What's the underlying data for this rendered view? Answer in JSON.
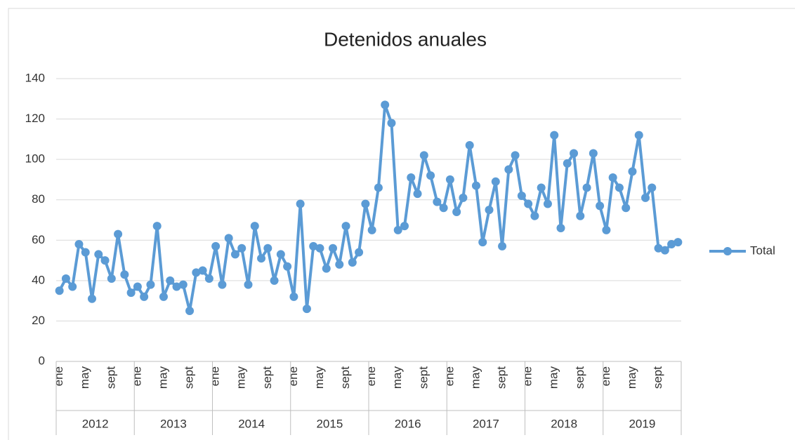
{
  "chart_data": {
    "type": "line",
    "title": "Detenidos anuales",
    "categories": [
      "ene",
      null,
      null,
      null,
      "may",
      null,
      null,
      null,
      "sept",
      null,
      null,
      null,
      "ene",
      null,
      null,
      null,
      "may",
      null,
      null,
      null,
      "sept",
      null,
      null,
      null,
      "ene",
      null,
      null,
      null,
      "may",
      null,
      null,
      null,
      "sept",
      null,
      null,
      null,
      "ene",
      null,
      null,
      null,
      "may",
      null,
      null,
      null,
      "sept",
      null,
      null,
      null,
      "ene",
      null,
      null,
      null,
      "may",
      null,
      null,
      null,
      "sept",
      null,
      null,
      null,
      "ene",
      null,
      null,
      null,
      "may",
      null,
      null,
      null,
      "sept",
      null,
      null,
      null,
      "ene",
      null,
      null,
      null,
      "may",
      null,
      null,
      null,
      "sept",
      null,
      null,
      null,
      "ene",
      null,
      null,
      null,
      "may",
      null,
      null,
      null,
      "sept",
      null,
      null,
      null
    ],
    "year_groups": [
      "2012",
      "2013",
      "2014",
      "2015",
      "2016",
      "2017",
      "2018",
      "2019"
    ],
    "series": [
      {
        "name": "Total",
        "color": "#5b9bd5",
        "values": [
          35,
          41,
          37,
          58,
          54,
          31,
          53,
          50,
          41,
          63,
          43,
          34,
          37,
          32,
          38,
          67,
          32,
          40,
          37,
          38,
          25,
          44,
          45,
          41,
          57,
          38,
          61,
          53,
          56,
          38,
          67,
          51,
          56,
          40,
          53,
          47,
          32,
          78,
          26,
          57,
          56,
          46,
          56,
          48,
          67,
          49,
          54,
          78,
          65,
          86,
          127,
          118,
          65,
          67,
          91,
          83,
          102,
          92,
          79,
          76,
          90,
          74,
          81,
          107,
          87,
          59,
          75,
          89,
          57,
          95,
          102,
          82,
          78,
          72,
          86,
          78,
          112,
          66,
          98,
          103,
          72,
          86,
          103,
          77,
          65,
          91,
          86,
          76,
          94,
          112,
          81,
          86,
          56,
          55,
          58,
          59
        ]
      }
    ],
    "ylim": [
      0,
      140
    ],
    "yticks": [
      0,
      20,
      40,
      60,
      80,
      100,
      120,
      140
    ],
    "grid": true,
    "legend": "right"
  }
}
